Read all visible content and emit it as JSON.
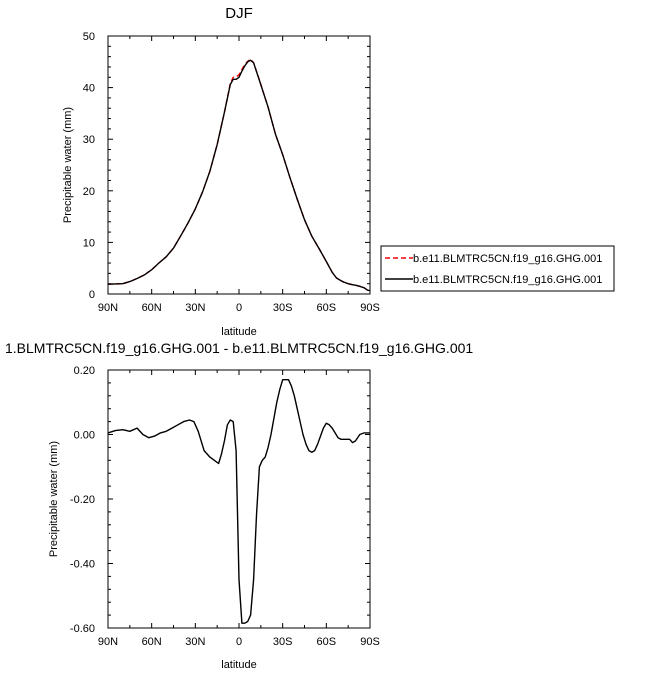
{
  "chart_data": [
    {
      "type": "line",
      "title": "DJF",
      "xlabel": "latitude",
      "ylabel": "Precipitable water (mm)",
      "xlim": [
        90,
        -90
      ],
      "ylim": [
        0,
        50
      ],
      "xticks": [
        90,
        60,
        30,
        0,
        -30,
        -60,
        -90
      ],
      "xtick_labels": [
        "90N",
        "60N",
        "30N",
        "0",
        "30S",
        "60S",
        "90S"
      ],
      "yticks": [
        0,
        10,
        20,
        30,
        40,
        50
      ],
      "ytick_labels": [
        "0",
        "10",
        "20",
        "30",
        "40",
        "50"
      ],
      "grid": false,
      "legend_position": "right, outside plot",
      "series": [
        {
          "name": "b.e11.BLMTRC5CN.f19_g16.GHG.001",
          "color": "#ff0000",
          "dash": "dashed",
          "x": [
            90,
            80,
            75,
            70,
            65,
            60,
            55,
            50,
            45,
            40,
            35,
            30,
            25,
            20,
            15,
            10,
            6,
            4,
            2,
            0,
            -2,
            -4,
            -6,
            -8,
            -10,
            -14,
            -20,
            -25,
            -30,
            -35,
            -40,
            -45,
            -50,
            -55,
            -60,
            -64,
            -67,
            -70,
            -72,
            -75,
            -78,
            -80,
            -83,
            -86,
            -88,
            -90
          ],
          "y": [
            1.9,
            2.0,
            2.4,
            3.0,
            3.7,
            4.7,
            6.0,
            7.2,
            8.9,
            11.3,
            13.8,
            16.5,
            19.8,
            23.8,
            29.0,
            35.2,
            40.8,
            42.0,
            42.1,
            42.5,
            43.5,
            44.5,
            45.1,
            45.5,
            44.8,
            41.5,
            36.2,
            31.0,
            27.0,
            22.6,
            18.4,
            14.4,
            11.2,
            8.8,
            6.3,
            4.2,
            3.1,
            2.6,
            2.3,
            2.0,
            1.8,
            1.7,
            1.5,
            1.2,
            0.8,
            0.6
          ]
        },
        {
          "name": "b.e11.BLMTRC5CN.f19_g16.GHG.001",
          "color": "#000000",
          "dash": "solid",
          "x": [
            90,
            80,
            75,
            70,
            65,
            60,
            55,
            50,
            45,
            40,
            35,
            30,
            25,
            20,
            15,
            10,
            6,
            4,
            2,
            0,
            -2,
            -4,
            -6,
            -8,
            -10,
            -14,
            -20,
            -25,
            -30,
            -35,
            -40,
            -45,
            -50,
            -55,
            -60,
            -64,
            -67,
            -70,
            -72,
            -75,
            -78,
            -80,
            -83,
            -86,
            -88,
            -90
          ],
          "y": [
            1.9,
            2.0,
            2.4,
            3.0,
            3.7,
            4.7,
            6.0,
            7.2,
            8.9,
            11.3,
            13.8,
            16.5,
            19.8,
            23.8,
            29.0,
            35.2,
            40.6,
            41.6,
            41.6,
            42.0,
            43.2,
            44.2,
            45.0,
            45.3,
            44.8,
            41.4,
            36.2,
            31.0,
            27.0,
            22.6,
            18.4,
            14.4,
            11.2,
            8.8,
            6.3,
            4.2,
            3.1,
            2.6,
            2.3,
            2.0,
            1.8,
            1.7,
            1.5,
            1.2,
            0.8,
            0.6
          ]
        }
      ]
    },
    {
      "type": "line",
      "title": "1.BLMTRC5CN.f19_g16.GHG.001 - b.e11.BLMTRC5CN.f19_g16.GHG.001",
      "xlabel": "latitude",
      "ylabel": "Precipitable water (mm)",
      "xlim": [
        90,
        -90
      ],
      "ylim": [
        -0.6,
        0.2
      ],
      "xticks": [
        90,
        60,
        30,
        0,
        -30,
        -60,
        -90
      ],
      "xtick_labels": [
        "90N",
        "60N",
        "30N",
        "0",
        "30S",
        "60S",
        "90S"
      ],
      "yticks": [
        -0.6,
        -0.4,
        -0.2,
        0.0,
        0.2
      ],
      "ytick_labels": [
        "-0.60",
        "-0.40",
        "-0.20",
        "0.00",
        "0.20"
      ],
      "grid": false,
      "series": [
        {
          "color": "#000000",
          "dash": "solid",
          "x": [
            90,
            85,
            80,
            75,
            70,
            66,
            62,
            58,
            54,
            50,
            46,
            42,
            38,
            34,
            31,
            28,
            24,
            20,
            17,
            14,
            12,
            10,
            8,
            6,
            4,
            2,
            0,
            -2,
            -4,
            -6,
            -8,
            -10,
            -12,
            -14,
            -16,
            -18,
            -20,
            -22,
            -24,
            -26,
            -28,
            -30,
            -34,
            -36,
            -38,
            -40,
            -42,
            -44,
            -46,
            -48,
            -50,
            -52,
            -54,
            -56,
            -58,
            -60,
            -62,
            -64,
            -66,
            -68,
            -70,
            -72,
            -74,
            -76,
            -78,
            -80,
            -83,
            -86,
            -90
          ],
          "y": [
            0.005,
            0.012,
            0.015,
            0.01,
            0.02,
            0.0,
            -0.01,
            -0.005,
            0.005,
            0.01,
            0.02,
            0.03,
            0.04,
            0.045,
            0.04,
            0.01,
            -0.05,
            -0.07,
            -0.08,
            -0.09,
            -0.06,
            -0.02,
            0.03,
            0.045,
            0.04,
            -0.05,
            -0.45,
            -0.585,
            -0.585,
            -0.58,
            -0.56,
            -0.45,
            -0.25,
            -0.1,
            -0.08,
            -0.07,
            -0.04,
            0.0,
            0.05,
            0.1,
            0.14,
            0.17,
            0.17,
            0.15,
            0.12,
            0.08,
            0.04,
            0.0,
            -0.03,
            -0.05,
            -0.055,
            -0.05,
            -0.03,
            -0.005,
            0.02,
            0.035,
            0.03,
            0.02,
            0.005,
            -0.01,
            -0.015,
            -0.015,
            -0.015,
            -0.015,
            -0.025,
            -0.02,
            0.0,
            0.005,
            0.005
          ]
        }
      ]
    }
  ]
}
